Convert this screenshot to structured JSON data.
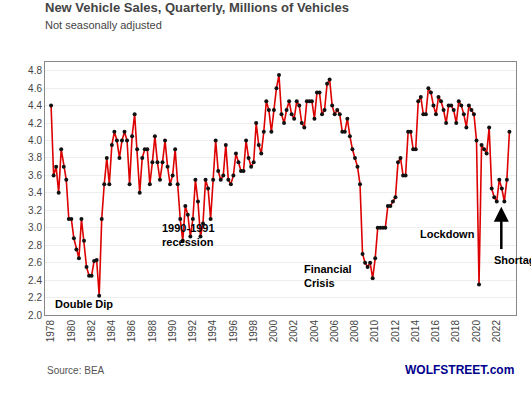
{
  "chart_data": {
    "type": "line",
    "title": "New Vehicle Sales, Quarterly, Millions of Vehicles",
    "subtitle": "Not seasonally adjusted",
    "source": "Source: BEA",
    "watermark": {
      "text": "WOLFSTREET.com",
      "color": "#00008B"
    },
    "grid": true,
    "xlim": [
      1977.4,
      2023.9
    ],
    "xticks": [
      1978,
      1980,
      1982,
      1984,
      1986,
      1988,
      1990,
      1992,
      1994,
      1996,
      1998,
      2000,
      2002,
      2004,
      2006,
      2008,
      2010,
      2012,
      2014,
      2016,
      2018,
      2020,
      2022
    ],
    "ylim": [
      2.0,
      4.9
    ],
    "yticks": [
      {
        "value": 2.0,
        "label": "2.0"
      },
      2.2,
      2.4,
      2.6,
      2.8,
      {
        "value": 3.0,
        "label": "3.0"
      },
      3.2,
      3.4,
      3.6,
      3.8,
      {
        "value": 4.0,
        "label": "4.0"
      },
      4.2,
      4.4,
      4.6,
      4.8
    ],
    "annotations": [
      {
        "text": "Double Dip",
        "x": 1978.2,
        "y": 2.04
      },
      {
        "text": "1990-1991\nrecession",
        "x": 1988.8,
        "y": 2.74
      },
      {
        "text": "Financial\nCrisis",
        "x": 2002.8,
        "y": 2.27
      },
      {
        "text": "Lockdown",
        "x": 2014.2,
        "y": 2.84
      },
      {
        "text": "Shortages",
        "x": 2021.55,
        "y": 2.54
      }
    ],
    "arrow": {
      "x": 2022.45,
      "y_from": 2.74,
      "y_to": 3.24
    },
    "x": [
      1978.0,
      1978.25,
      1978.5,
      1978.75,
      1979.0,
      1979.25,
      1979.5,
      1979.75,
      1980.0,
      1980.25,
      1980.5,
      1980.75,
      1981.0,
      1981.25,
      1981.5,
      1981.75,
      1982.0,
      1982.25,
      1982.5,
      1982.75,
      1983.0,
      1983.25,
      1983.5,
      1983.75,
      1984.0,
      1984.25,
      1984.5,
      1984.75,
      1985.0,
      1985.25,
      1985.5,
      1985.75,
      1986.0,
      1986.25,
      1986.5,
      1986.75,
      1987.0,
      1987.25,
      1987.5,
      1987.75,
      1988.0,
      1988.25,
      1988.5,
      1988.75,
      1989.0,
      1989.25,
      1989.5,
      1989.75,
      1990.0,
      1990.25,
      1990.5,
      1990.75,
      1991.0,
      1991.25,
      1991.5,
      1991.75,
      1992.0,
      1992.25,
      1992.5,
      1992.75,
      1993.0,
      1993.25,
      1993.5,
      1993.75,
      1994.0,
      1994.25,
      1994.5,
      1994.75,
      1995.0,
      1995.25,
      1995.5,
      1995.75,
      1996.0,
      1996.25,
      1996.5,
      1996.75,
      1997.0,
      1997.25,
      1997.5,
      1997.75,
      1998.0,
      1998.25,
      1998.5,
      1998.75,
      1999.0,
      1999.25,
      1999.5,
      1999.75,
      2000.0,
      2000.25,
      2000.5,
      2000.75,
      2001.0,
      2001.25,
      2001.5,
      2001.75,
      2002.0,
      2002.25,
      2002.5,
      2002.75,
      2003.0,
      2003.25,
      2003.5,
      2003.75,
      2004.0,
      2004.25,
      2004.5,
      2004.75,
      2005.0,
      2005.25,
      2005.5,
      2005.75,
      2006.0,
      2006.25,
      2006.5,
      2006.75,
      2007.0,
      2007.25,
      2007.5,
      2007.75,
      2008.0,
      2008.25,
      2008.5,
      2008.75,
      2009.0,
      2009.25,
      2009.5,
      2009.75,
      2010.0,
      2010.25,
      2010.5,
      2010.75,
      2011.0,
      2011.25,
      2011.5,
      2011.75,
      2012.0,
      2012.25,
      2012.5,
      2012.75,
      2013.0,
      2013.25,
      2013.5,
      2013.75,
      2014.0,
      2014.25,
      2014.5,
      2014.75,
      2015.0,
      2015.25,
      2015.5,
      2015.75,
      2016.0,
      2016.25,
      2016.5,
      2016.75,
      2017.0,
      2017.25,
      2017.5,
      2017.75,
      2018.0,
      2018.25,
      2018.5,
      2018.75,
      2019.0,
      2019.25,
      2019.5,
      2019.75,
      2020.0,
      2020.25,
      2020.5,
      2020.75,
      2021.0,
      2021.25,
      2021.5,
      2021.75,
      2022.0,
      2022.25,
      2022.5,
      2022.75,
      2023.0,
      2023.25
    ],
    "series": [
      {
        "type": "line",
        "color": "#DD0000",
        "values": [
          4.4,
          3.6,
          3.7,
          3.4,
          3.9,
          3.7,
          3.55,
          3.1,
          3.1,
          2.88,
          2.75,
          2.65,
          3.1,
          2.85,
          2.55,
          2.45,
          2.45,
          2.62,
          2.63,
          2.22,
          3.1,
          3.5,
          3.8,
          3.5,
          3.95,
          4.1,
          4.0,
          3.8,
          4.0,
          4.1,
          4.0,
          3.5,
          4.05,
          4.3,
          3.9,
          3.4,
          3.8,
          3.9,
          3.9,
          3.5,
          3.75,
          4.05,
          3.75,
          3.55,
          3.75,
          4.0,
          3.7,
          3.5,
          3.6,
          3.9,
          3.5,
          3.1,
          2.85,
          3.25,
          3.15,
          2.9,
          3.1,
          3.55,
          3.3,
          2.9,
          3.05,
          3.55,
          3.45,
          3.1,
          3.55,
          4.0,
          3.65,
          3.55,
          3.6,
          3.95,
          3.55,
          3.5,
          3.6,
          3.85,
          3.75,
          3.65,
          3.65,
          4.0,
          3.8,
          3.7,
          3.75,
          4.2,
          3.95,
          3.85,
          4.1,
          4.45,
          4.35,
          4.1,
          4.35,
          4.6,
          4.75,
          4.3,
          4.2,
          4.35,
          4.45,
          4.3,
          4.25,
          4.45,
          4.4,
          4.2,
          4.15,
          4.45,
          4.45,
          4.45,
          4.25,
          4.55,
          4.55,
          4.3,
          4.35,
          4.65,
          4.7,
          4.4,
          4.3,
          4.35,
          4.3,
          4.1,
          4.1,
          4.25,
          4.05,
          3.9,
          3.8,
          3.7,
          3.5,
          2.7,
          2.6,
          2.55,
          2.6,
          2.42,
          2.65,
          3.0,
          3.0,
          3.0,
          3.0,
          3.25,
          3.25,
          3.3,
          3.35,
          3.75,
          3.8,
          3.6,
          3.6,
          4.1,
          4.1,
          3.9,
          3.9,
          4.45,
          4.5,
          4.3,
          4.3,
          4.6,
          4.55,
          4.4,
          4.3,
          4.5,
          4.45,
          4.35,
          4.2,
          4.4,
          4.4,
          4.35,
          4.2,
          4.45,
          4.4,
          4.3,
          4.15,
          4.4,
          4.35,
          4.3,
          4.0,
          2.35,
          3.95,
          3.9,
          3.85,
          4.15,
          3.45,
          3.35,
          3.3,
          3.55,
          3.45,
          3.3,
          3.55,
          4.1
        ]
      },
      {
        "type": "scatter",
        "marker": "circle",
        "color": "#111111",
        "values": [
          4.4,
          3.6,
          3.7,
          3.4,
          3.9,
          3.7,
          3.55,
          3.1,
          3.1,
          2.88,
          2.75,
          2.65,
          3.1,
          2.85,
          2.55,
          2.45,
          2.45,
          2.62,
          2.63,
          2.22,
          3.1,
          3.5,
          3.8,
          3.5,
          3.95,
          4.1,
          4.0,
          3.8,
          4.0,
          4.1,
          4.0,
          3.5,
          4.05,
          4.3,
          3.9,
          3.4,
          3.8,
          3.9,
          3.9,
          3.5,
          3.75,
          4.05,
          3.75,
          3.55,
          3.75,
          4.0,
          3.7,
          3.5,
          3.6,
          3.9,
          3.5,
          3.1,
          2.85,
          3.25,
          3.15,
          2.9,
          3.1,
          3.55,
          3.3,
          2.9,
          3.05,
          3.55,
          3.45,
          3.1,
          3.55,
          4.0,
          3.65,
          3.55,
          3.6,
          3.95,
          3.55,
          3.5,
          3.6,
          3.85,
          3.75,
          3.65,
          3.65,
          4.0,
          3.8,
          3.7,
          3.75,
          4.2,
          3.95,
          3.85,
          4.1,
          4.45,
          4.35,
          4.1,
          4.35,
          4.6,
          4.75,
          4.3,
          4.2,
          4.35,
          4.45,
          4.3,
          4.25,
          4.45,
          4.4,
          4.2,
          4.15,
          4.45,
          4.45,
          4.45,
          4.25,
          4.55,
          4.55,
          4.3,
          4.35,
          4.65,
          4.7,
          4.4,
          4.3,
          4.35,
          4.3,
          4.1,
          4.1,
          4.25,
          4.05,
          3.9,
          3.8,
          3.7,
          3.5,
          2.7,
          2.6,
          2.55,
          2.6,
          2.42,
          2.65,
          3.0,
          3.0,
          3.0,
          3.0,
          3.25,
          3.25,
          3.3,
          3.35,
          3.75,
          3.8,
          3.6,
          3.6,
          4.1,
          4.1,
          3.9,
          3.9,
          4.45,
          4.5,
          4.3,
          4.3,
          4.6,
          4.55,
          4.4,
          4.3,
          4.5,
          4.45,
          4.35,
          4.2,
          4.4,
          4.4,
          4.35,
          4.2,
          4.45,
          4.4,
          4.3,
          4.15,
          4.4,
          4.35,
          4.3,
          4.0,
          2.35,
          3.95,
          3.9,
          3.85,
          4.15,
          3.45,
          3.35,
          3.3,
          3.55,
          3.45,
          3.3,
          3.55,
          4.1
        ]
      }
    ]
  }
}
